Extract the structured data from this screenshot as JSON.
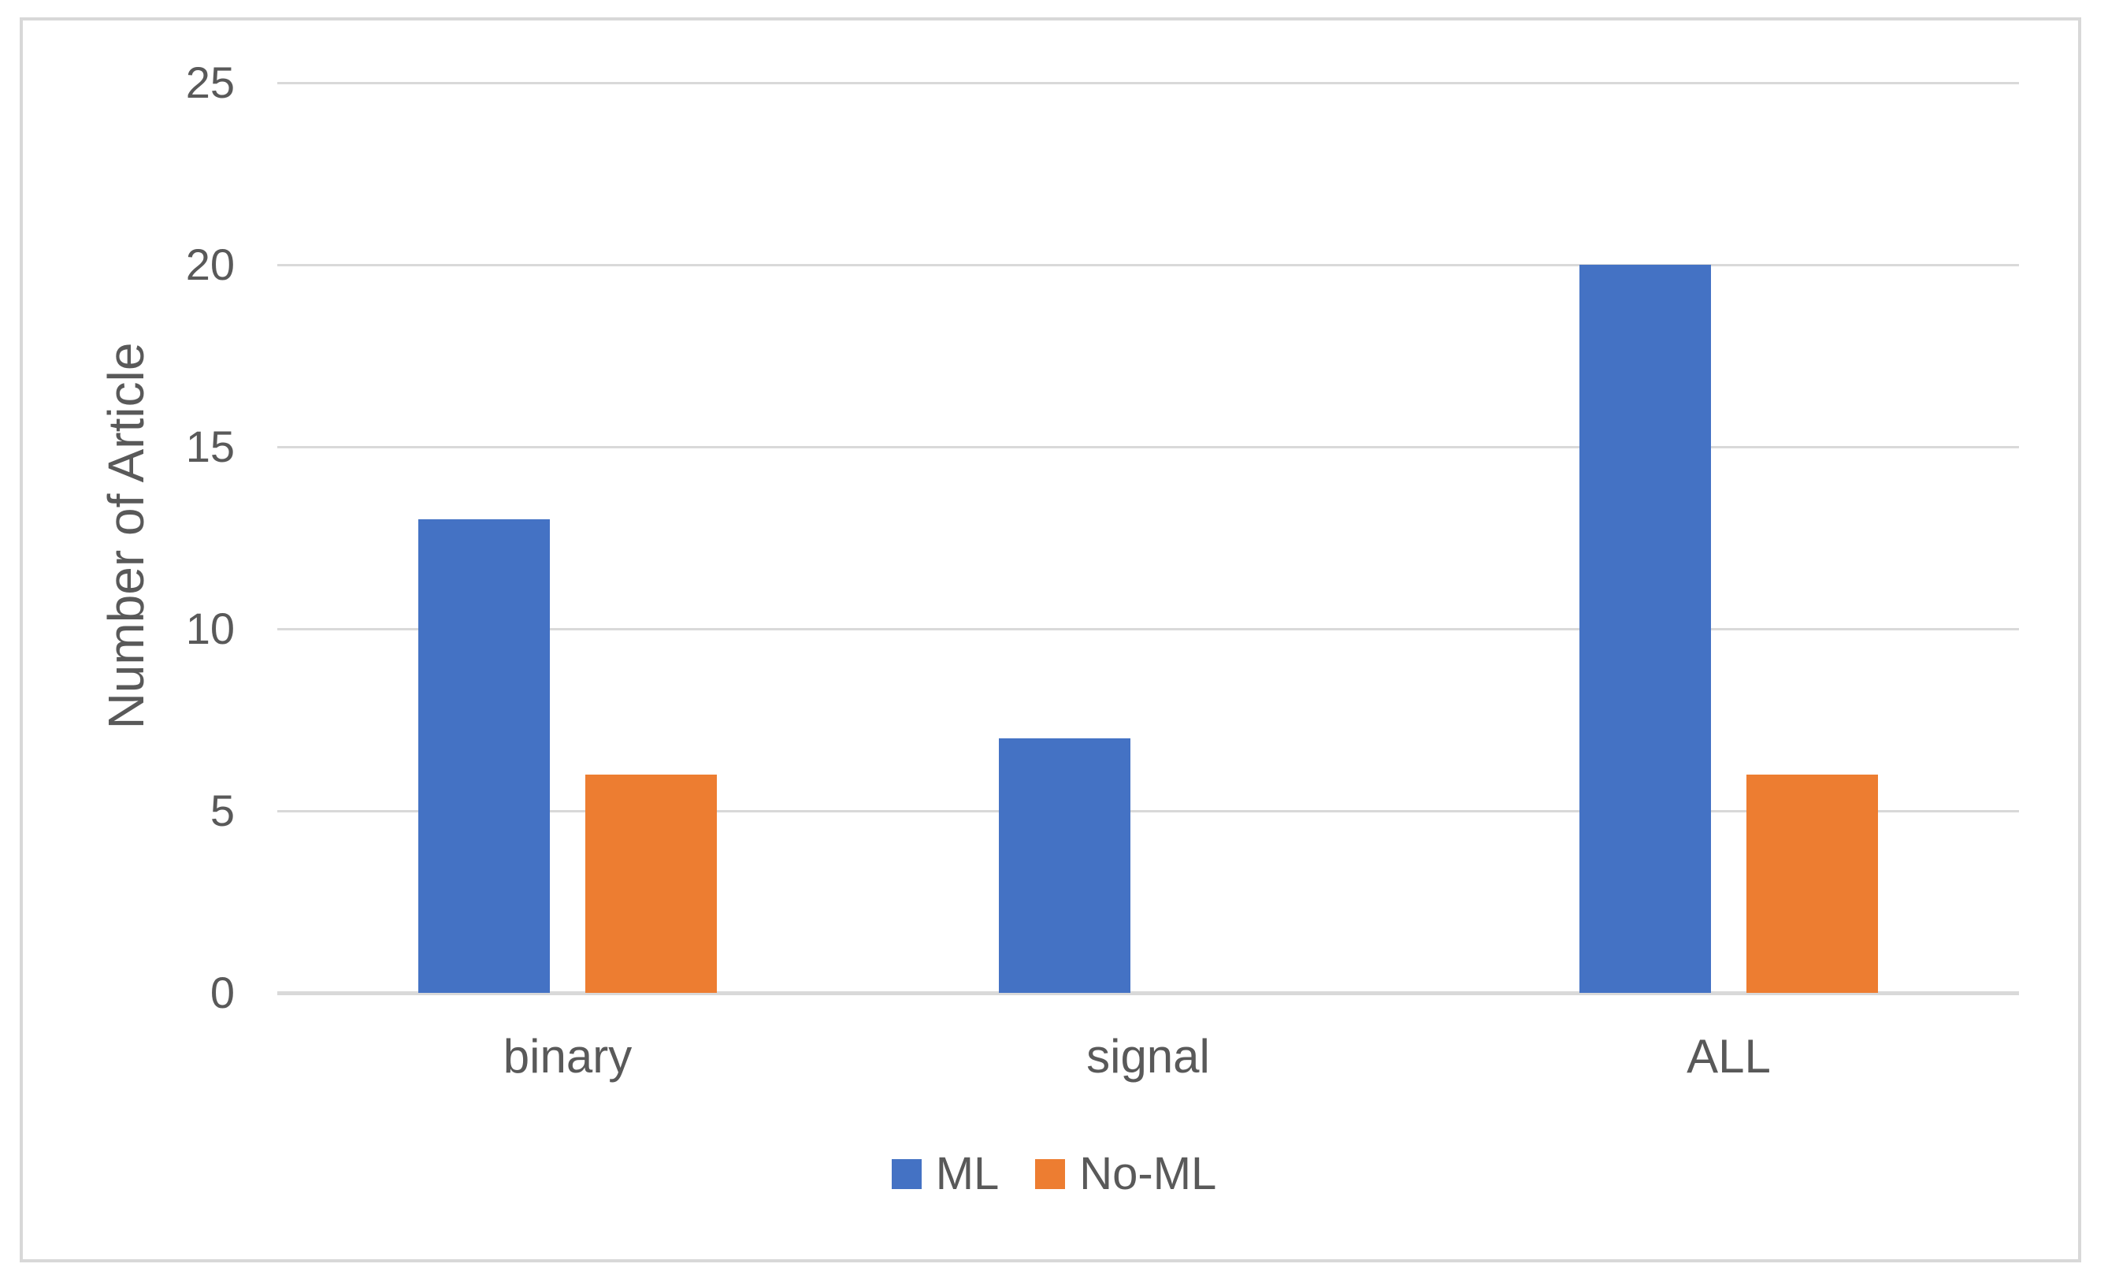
{
  "chart_data": {
    "type": "bar",
    "categories": [
      "binary",
      "signal",
      "ALL"
    ],
    "series": [
      {
        "name": "ML",
        "color": "#4472C4",
        "values": [
          13,
          7,
          20
        ]
      },
      {
        "name": "No-ML",
        "color": "#ED7D31",
        "values": [
          6,
          0,
          6
        ]
      }
    ],
    "xlabel": "",
    "ylabel": "Number of Article",
    "yticks": [
      0,
      5,
      10,
      15,
      20,
      25
    ],
    "ylim": [
      0,
      25
    ],
    "grid": "horizontal-gridlines-on",
    "legend_position": "bottom",
    "colors": {
      "gridline": "#d9d9d9",
      "axis_line": "#d9d9d9",
      "text": "#595959",
      "chart_border": "#d8d8d8",
      "background": "#ffffff"
    }
  }
}
